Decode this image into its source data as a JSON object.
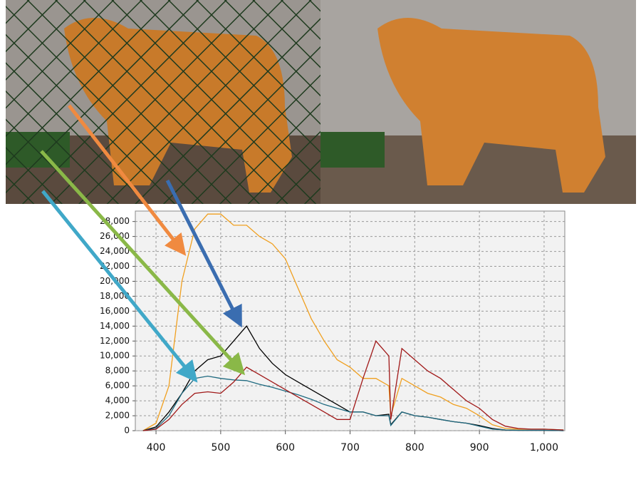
{
  "chart_data": {
    "type": "line",
    "x": [
      380,
      400,
      420,
      440,
      460,
      480,
      500,
      520,
      540,
      560,
      580,
      600,
      620,
      640,
      660,
      680,
      700,
      720,
      740,
      760,
      763,
      780,
      800,
      820,
      840,
      860,
      880,
      900,
      920,
      940,
      960,
      980,
      1000,
      1030
    ],
    "series": [
      {
        "color": "#f0a020",
        "values": [
          0,
          1000,
          6000,
          20000,
          27000,
          29000,
          29000,
          27500,
          27500,
          26000,
          25000,
          23000,
          19000,
          15000,
          12000,
          9500,
          8500,
          7000,
          7000,
          6000,
          2000,
          7000,
          6000,
          5000,
          4500,
          3500,
          3000,
          2000,
          800,
          300,
          200,
          200,
          200,
          100
        ]
      },
      {
        "color": "#000000",
        "values": [
          0,
          500,
          2500,
          5000,
          8000,
          9500,
          10000,
          12000,
          14000,
          11000,
          9000,
          7500,
          6500,
          5500,
          4500,
          3500,
          2500,
          2500,
          2000,
          2200,
          800,
          2500,
          2000,
          1800,
          1500,
          1200,
          1000,
          700,
          300,
          100,
          50,
          50,
          50,
          0
        ]
      },
      {
        "color": "#1f6a80",
        "values": [
          0,
          300,
          2000,
          5000,
          7000,
          7300,
          7000,
          6800,
          6700,
          6200,
          5800,
          5300,
          4800,
          4200,
          3500,
          3000,
          2500,
          2500,
          2000,
          2000,
          700,
          2500,
          2000,
          1800,
          1500,
          1200,
          1000,
          600,
          200,
          100,
          50,
          50,
          50,
          0
        ]
      },
      {
        "color": "#a01818",
        "values": [
          0,
          200,
          1500,
          3500,
          5000,
          5200,
          5000,
          6500,
          8500,
          7500,
          6500,
          5500,
          4500,
          3500,
          2500,
          1500,
          1500,
          7000,
          12000,
          10000,
          1500,
          11000,
          9500,
          8000,
          7000,
          5500,
          4000,
          3000,
          1500,
          600,
          300,
          200,
          200,
          100
        ]
      }
    ],
    "xlim": [
      368,
      1032
    ],
    "xticks": [
      400,
      500,
      600,
      700,
      800,
      900,
      {
        "value": 1000,
        "label": "1,000"
      }
    ],
    "ylim": [
      0,
      29400
    ],
    "yticks": [
      0,
      {
        "value": 2000,
        "label": "2,000"
      },
      {
        "value": 4000,
        "label": "4,000"
      },
      {
        "value": 6000,
        "label": "6,000"
      },
      {
        "value": 8000,
        "label": "8,000"
      },
      {
        "value": 10000,
        "label": "10,000"
      },
      {
        "value": 12000,
        "label": "12,000"
      },
      {
        "value": 14000,
        "label": "14,000"
      },
      {
        "value": 16000,
        "label": "16,000"
      },
      {
        "value": 18000,
        "label": "18,000"
      },
      {
        "value": 20000,
        "label": "20,000"
      },
      {
        "value": 22000,
        "label": "22,000"
      },
      {
        "value": 24000,
        "label": "24,000"
      },
      {
        "value": 26000,
        "label": "26,000"
      },
      {
        "value": 28000,
        "label": "28,000"
      }
    ],
    "grid": true
  }
}
